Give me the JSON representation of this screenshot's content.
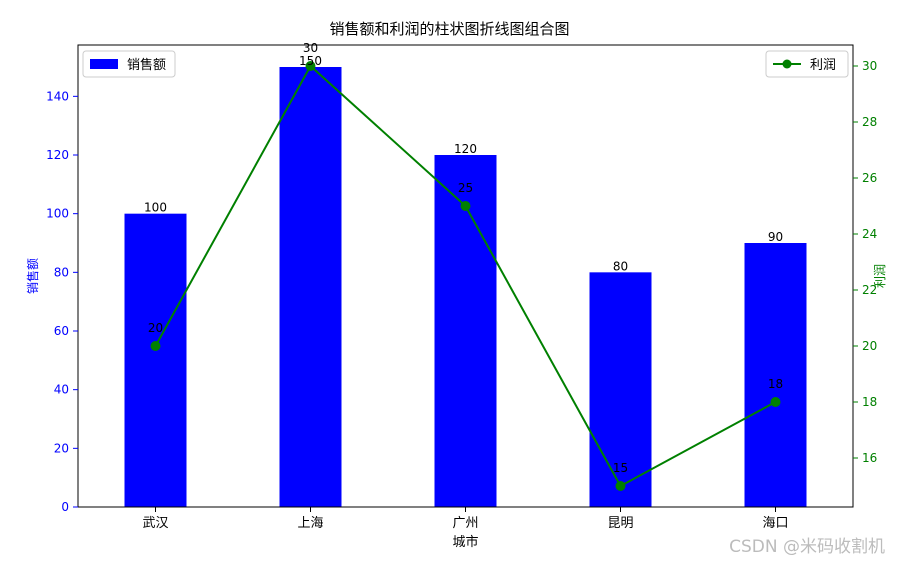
{
  "watermark": "CSDN @米码收割机",
  "chart_data": {
    "type": "bar+line",
    "title": "销售额和利润的柱状图折线图组合图",
    "xlabel": "城市",
    "categories": [
      "武汉",
      "上海",
      "广州",
      "昆明",
      "海口"
    ],
    "series": [
      {
        "name": "销售额",
        "type": "bar",
        "axis": "left",
        "color": "#0000ff",
        "values": [
          100,
          150,
          120,
          80,
          90
        ]
      },
      {
        "name": "利润",
        "type": "line",
        "axis": "right",
        "color": "#008000",
        "marker": "circle",
        "values": [
          20,
          30,
          25,
          15,
          18
        ]
      }
    ],
    "y_left": {
      "label": "销售额",
      "ylim": [
        0,
        157.5
      ],
      "ticks": [
        0,
        20,
        40,
        60,
        80,
        100,
        120,
        140
      ],
      "color": "#0000ff"
    },
    "y_right": {
      "label": "利润",
      "ylim": [
        14.25,
        30.75
      ],
      "ticks": [
        16,
        18,
        20,
        22,
        24,
        26,
        28,
        30
      ],
      "color": "#008000"
    },
    "legends": {
      "bar": "top-left",
      "line": "top-right"
    },
    "data_labels": true,
    "grid": false
  }
}
